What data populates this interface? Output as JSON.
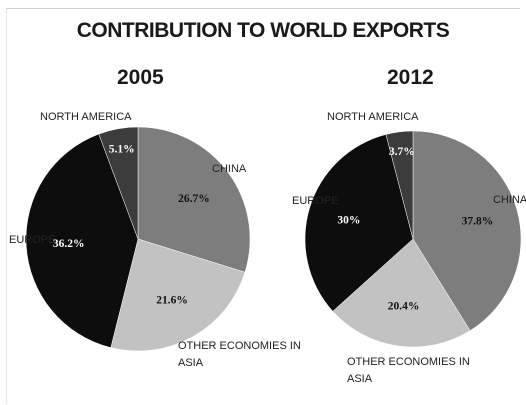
{
  "title": "CONTRIBUTION TO WORLD EXPORTS",
  "chart_data": [
    {
      "type": "pie",
      "title": "2005",
      "start_angle_deg": 0,
      "slices": [
        {
          "label": "CHINA",
          "value": 26.7,
          "value_label": "26.7%",
          "color": "#7d7d7d"
        },
        {
          "label": "OTHER ECONOMIES IN ASIA",
          "value": 21.6,
          "value_label": "21.6%",
          "color": "#c2c2c2"
        },
        {
          "label": "EUROPE",
          "value": 36.2,
          "value_label": "36.2%",
          "color": "#0d0d0d"
        },
        {
          "label": "NORTH AMERICA",
          "value": 5.1,
          "value_label": "5.1%",
          "color": "#3c3c3c"
        }
      ]
    },
    {
      "type": "pie",
      "title": "2012",
      "start_angle_deg": 0,
      "slices": [
        {
          "label": "CHINA",
          "value": 37.8,
          "value_label": "37.8%",
          "color": "#7d7d7d"
        },
        {
          "label": "OTHER ECONOMIES IN ASIA",
          "value": 20.4,
          "value_label": "20.4%",
          "color": "#c2c2c2"
        },
        {
          "label": "EUROPE",
          "value": 30,
          "value_label": "30%",
          "color": "#0d0d0d"
        },
        {
          "label": "NORTH AMERICA",
          "value": 3.7,
          "value_label": "3.7%",
          "color": "#3c3c3c"
        }
      ]
    }
  ]
}
